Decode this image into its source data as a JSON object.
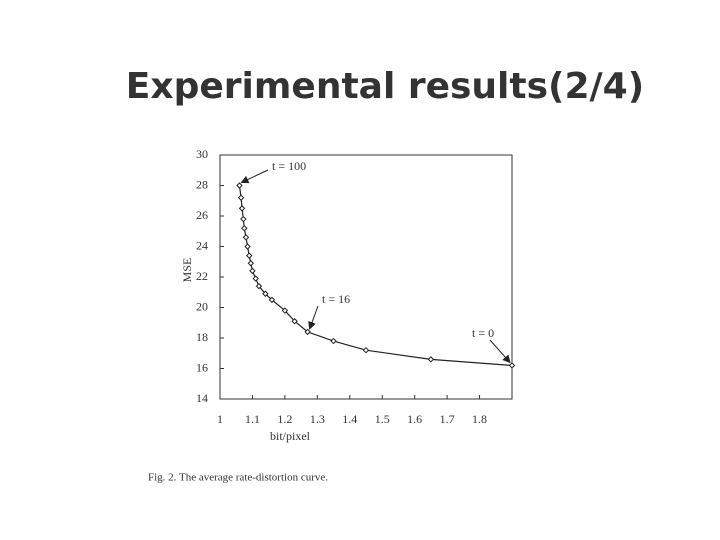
{
  "slide_title": "Experimental results(2/4)",
  "chart_data": {
    "type": "line",
    "x_label": "bit/pixel",
    "y_label": "MSE",
    "caption": "Fig. 2.   The average rate-distortion curve.",
    "x": [
      1.06,
      1.065,
      1.068,
      1.072,
      1.075,
      1.08,
      1.085,
      1.09,
      1.095,
      1.1,
      1.11,
      1.12,
      1.14,
      1.16,
      1.2,
      1.23,
      1.27,
      1.35,
      1.45,
      1.65,
      1.9
    ],
    "series": [
      {
        "name": "MSE",
        "color": "#222222",
        "values": [
          28,
          27.2,
          26.5,
          25.8,
          25.2,
          24.6,
          24.0,
          23.4,
          22.9,
          22.4,
          21.9,
          21.4,
          20.9,
          20.5,
          19.8,
          19.1,
          18.4,
          17.8,
          17.2,
          16.6,
          16.2
        ]
      }
    ],
    "annotations": [
      {
        "text": "t = 100"
      },
      {
        "text": "t = 16"
      },
      {
        "text": "t = 0"
      }
    ],
    "xlim": [
      1,
      1.9
    ],
    "ylim": [
      14,
      30
    ],
    "xticks": [
      1,
      1.1,
      1.2,
      1.3,
      1.4,
      1.5,
      1.6,
      1.7,
      1.8
    ],
    "yticks": [
      14,
      16,
      18,
      20,
      22,
      24,
      26,
      28,
      30
    ]
  }
}
